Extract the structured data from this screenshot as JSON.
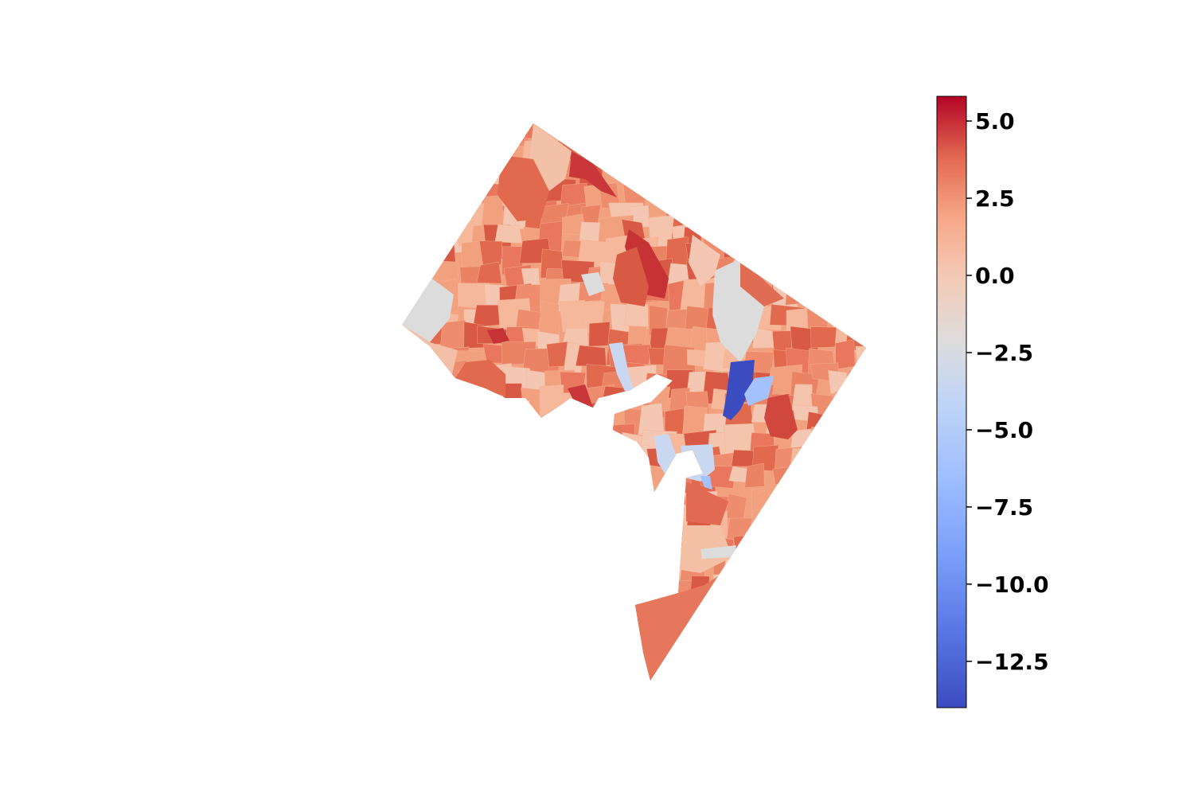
{
  "map": {
    "colormap": "coolwarm",
    "colormap_stops": [
      "#3b4cc0",
      "#6788ee",
      "#9abbff",
      "#c9d7f0",
      "#dddcdc",
      "#f2cbb7",
      "#f7a889",
      "#e26952",
      "#b40426"
    ],
    "legend_placement": "right",
    "region_count_approx": 180,
    "dominant_color": "#f2a17f",
    "notable_regions": [
      {
        "name": "large-negative-east-region",
        "color": "#3b4cc0",
        "value": -13.5
      },
      {
        "name": "moderate-negative-east-region",
        "color": "#a3c2fe",
        "value": -8.5
      },
      {
        "name": "high-positive-north-central-region",
        "color": "#c9373a",
        "value": 4.8
      },
      {
        "name": "neutral-northwest-edge",
        "color": "#dddcdc",
        "value": -3.8
      },
      {
        "name": "southern-tip-region",
        "color": "#e6775c",
        "value": 2.2
      }
    ]
  },
  "colorbar": {
    "min": -14.0,
    "max": 5.8,
    "ticks": [
      {
        "value": 5.0,
        "label": "5.0"
      },
      {
        "value": 2.5,
        "label": "2.5"
      },
      {
        "value": 0.0,
        "label": "0.0"
      },
      {
        "value": -2.5,
        "label": "−2.5"
      },
      {
        "value": -5.0,
        "label": "−5.0"
      },
      {
        "value": -7.5,
        "label": "−7.5"
      },
      {
        "value": -10.0,
        "label": "−10.0"
      },
      {
        "value": -12.5,
        "label": "−12.5"
      }
    ]
  }
}
